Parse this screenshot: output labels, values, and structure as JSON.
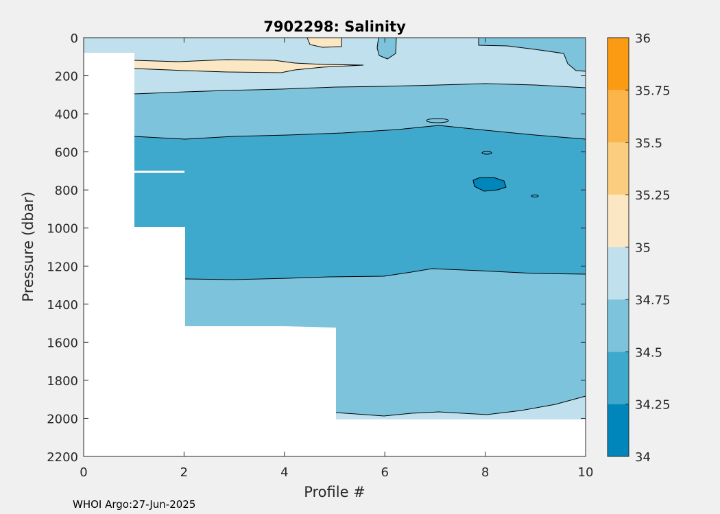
{
  "chart_data": {
    "type": "contour",
    "title": "7902298:  Salinity",
    "xlabel": "Profile #",
    "ylabel": "Pressure (dbar)",
    "xlim": [
      0,
      10
    ],
    "ylim": [
      0,
      2200
    ],
    "y_reversed": true,
    "x_ticks": [
      0,
      2,
      4,
      6,
      8,
      10
    ],
    "y_ticks": [
      0,
      200,
      400,
      600,
      800,
      1000,
      1200,
      1400,
      1600,
      1800,
      2000,
      2200
    ],
    "colorbar": {
      "range": [
        34,
        36
      ],
      "ticks": [
        34,
        34.25,
        34.5,
        34.75,
        35,
        35.25,
        35.5,
        35.75,
        36
      ],
      "tick_labels": [
        "34",
        "34.25",
        "34.5",
        "34.75",
        "35",
        "35.25",
        "35.5",
        "35.75",
        "36"
      ],
      "band_colors": [
        "#0086ba",
        "#3fa8cd",
        "#7dc3dc",
        "#bfe0ec",
        "#fbe7c4",
        "#fbcd7e",
        "#fbb54a",
        "#fb9b14"
      ]
    },
    "profiles": [
      1,
      2,
      3,
      4,
      5,
      6,
      7,
      8,
      9,
      10
    ],
    "max_pressure_by_profile": [
      990,
      1510,
      1510,
      1520,
      2000,
      2000,
      2000,
      2000,
      2000,
      2000
    ],
    "contour_bands": [
      {
        "range": [
          34.75,
          35.0
        ],
        "approx_pressure_span": [
          0,
          290
        ]
      },
      {
        "range": [
          34.5,
          34.75
        ],
        "approx_pressure_span": [
          260,
          540
        ]
      },
      {
        "range": [
          34.25,
          34.5
        ],
        "approx_pressure_span": [
          440,
          1270
        ]
      },
      {
        "range": [
          34.5,
          34.75
        ],
        "approx_pressure_span": [
          1200,
          1980
        ]
      },
      {
        "range": [
          34.75,
          35.0
        ],
        "approx_pressure_span": [
          1880,
          2000
        ]
      },
      {
        "range": [
          35.0,
          35.25
        ],
        "approx_pressure_span": [
          100,
          180
        ],
        "approx_profile_span": [
          1,
          5.7
        ]
      },
      {
        "range": [
          34.0,
          34.25
        ],
        "approx_pressure_span": [
          750,
          820
        ],
        "approx_profile_span": [
          7.7,
          8.4
        ]
      }
    ]
  },
  "footer": {
    "credit": "WHOI Argo:27-Jun-2025"
  }
}
